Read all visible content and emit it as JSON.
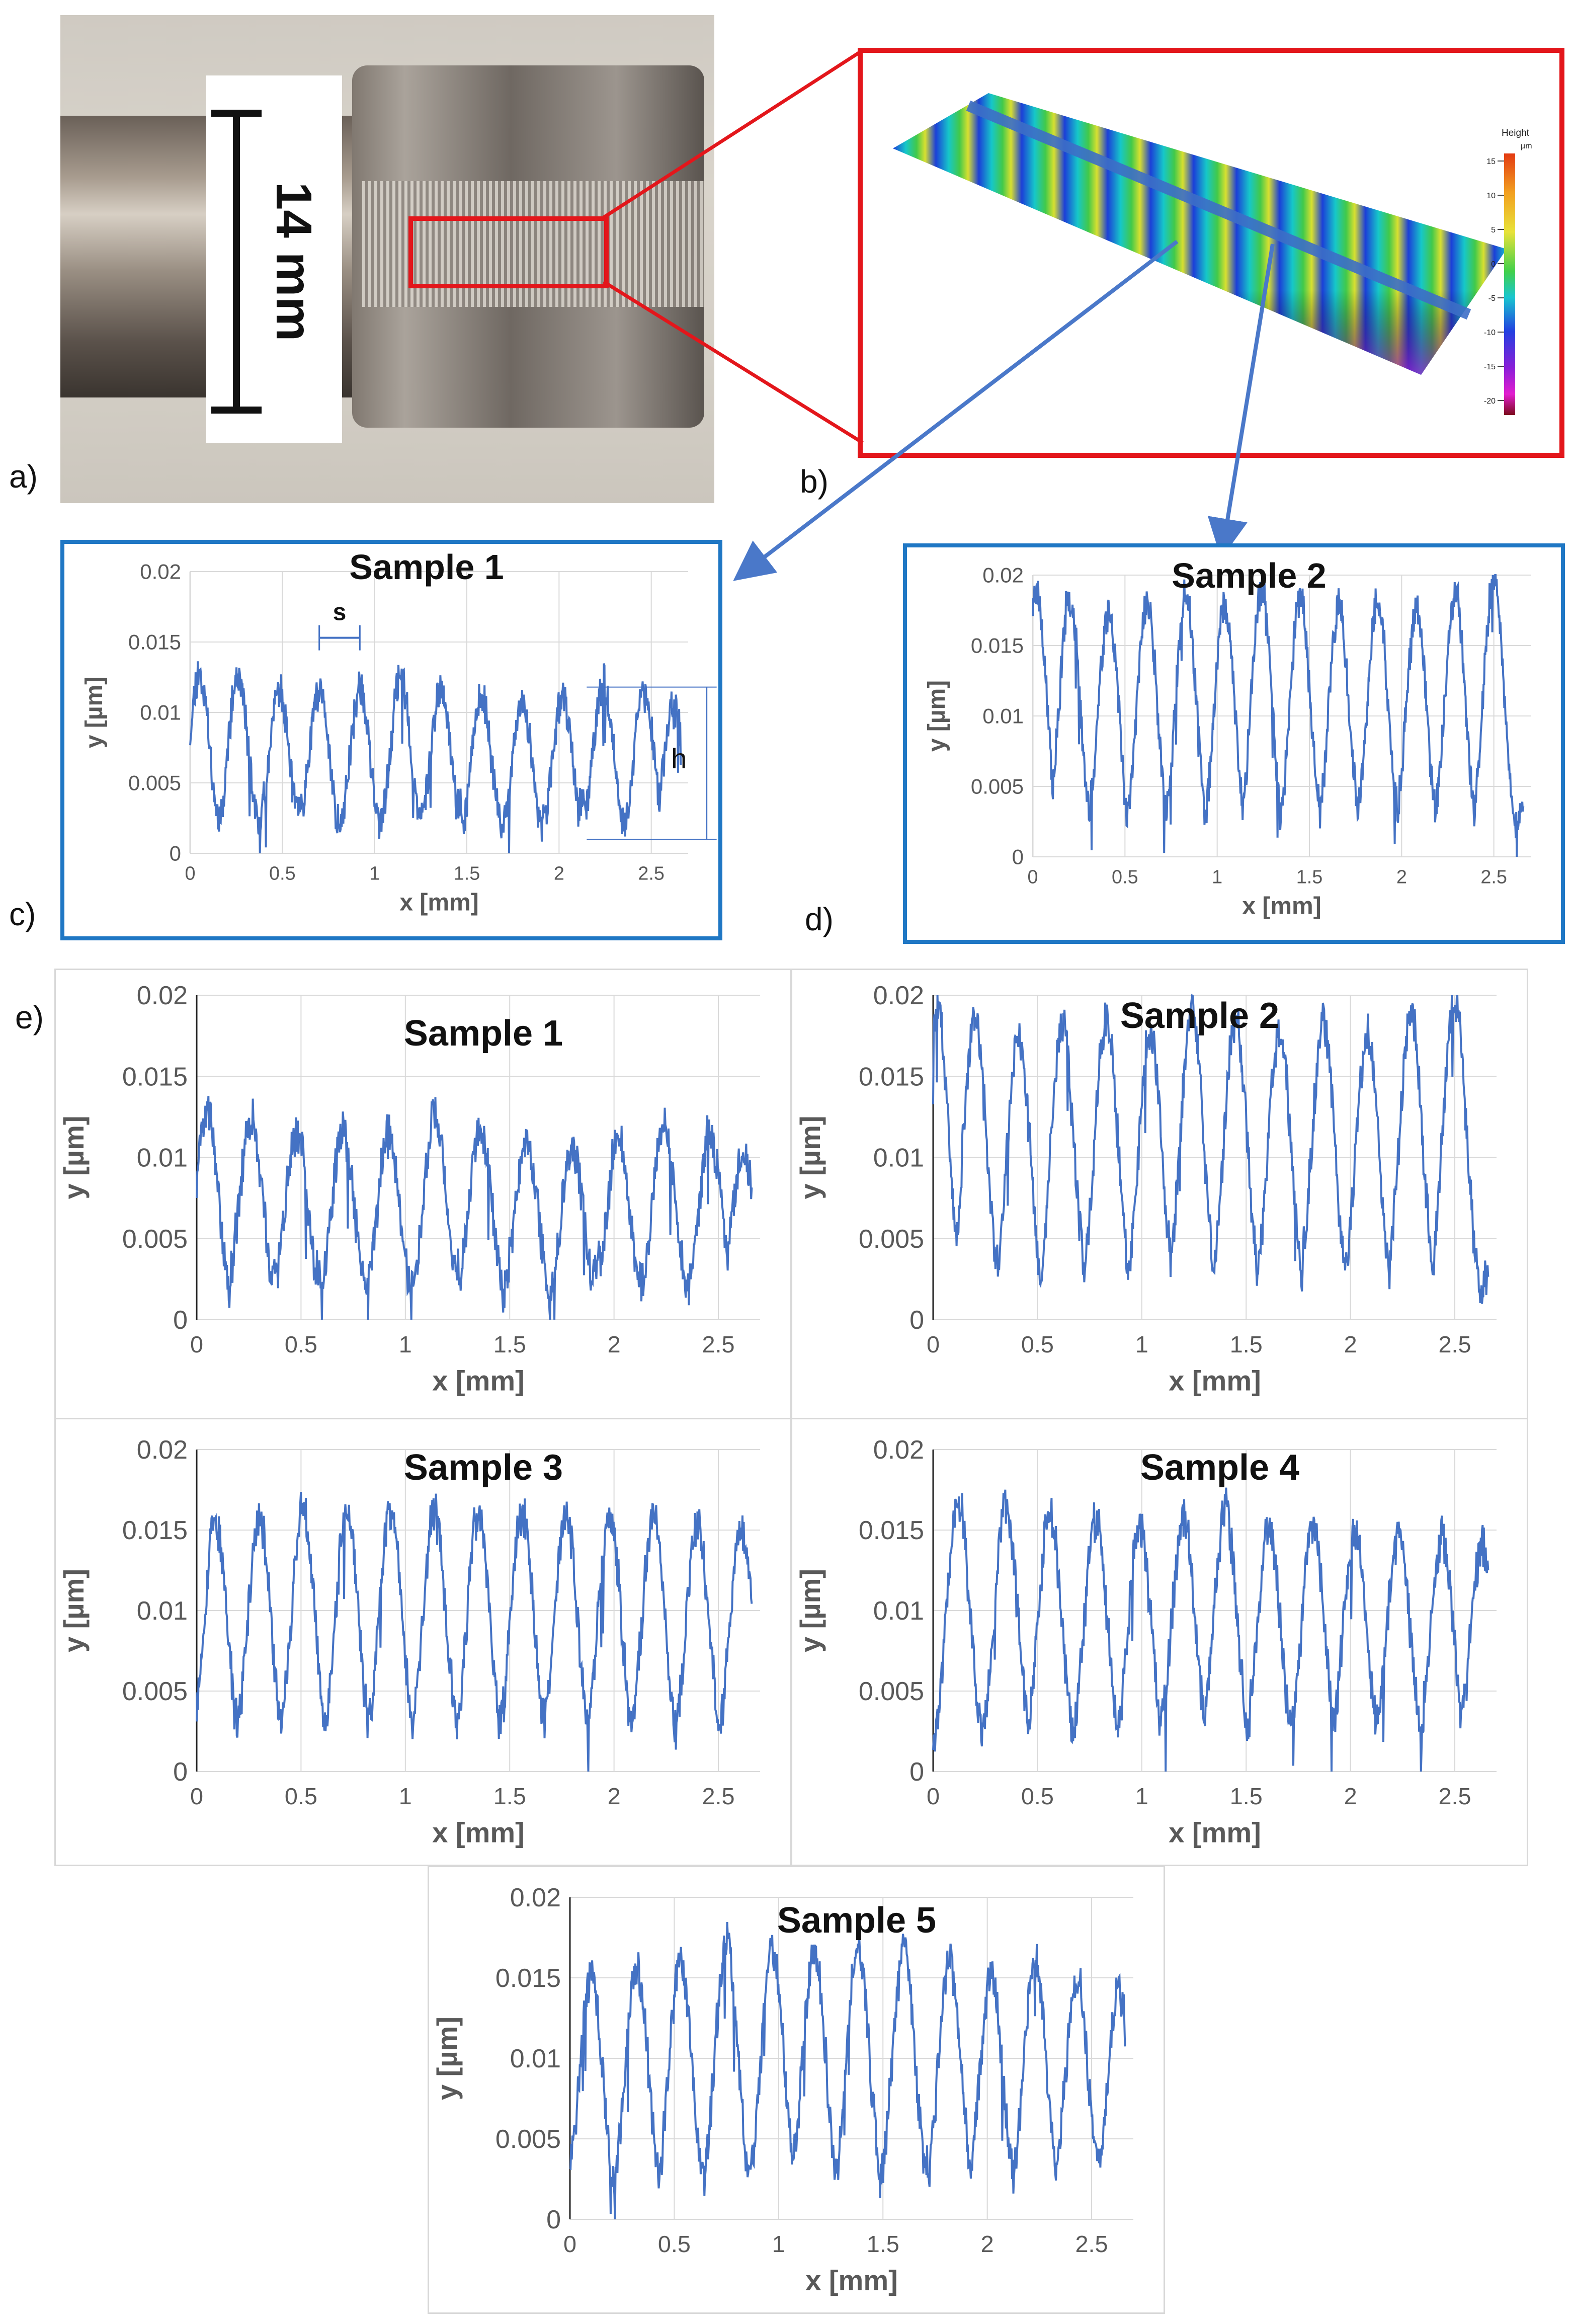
{
  "labels": {
    "a": "a)",
    "b": "b)",
    "c": "c)",
    "d": "d)",
    "e": "e)"
  },
  "photo": {
    "scale_label": "14 mm"
  },
  "surface": {
    "legend_title": "Height",
    "legend_unit": "µm",
    "legend_ticks": [
      "15",
      "10",
      "5",
      "0",
      "-5",
      "-10",
      "-15",
      "-20"
    ]
  },
  "annotations": {
    "spacing": "s",
    "height": "h"
  },
  "colors": {
    "line": "#4472c4",
    "box_red": "#e3161b",
    "box_blue": "#1f77c4",
    "grid": "#d9d9d9"
  },
  "chart_data": [
    {
      "id": "c",
      "type": "line",
      "title": "Sample 1",
      "xlabel": "x [mm]",
      "ylabel": "y [µm]",
      "xlim": [
        0,
        2.7
      ],
      "ylim": [
        0,
        0.02
      ],
      "xticks": [
        "0",
        "0.5",
        "1",
        "1.5",
        "2",
        "2.5"
      ],
      "yticks": [
        "0",
        "0.005",
        "0.01",
        "0.015",
        "0.02"
      ],
      "peaks": [
        0.05,
        0.26,
        0.48,
        0.7,
        0.92,
        1.14,
        1.36,
        1.58,
        1.8,
        2.02,
        2.24,
        2.46,
        2.62
      ],
      "peak_heights": [
        0.0128,
        0.0125,
        0.0115,
        0.0116,
        0.0115,
        0.0125,
        0.0117,
        0.011,
        0.0105,
        0.011,
        0.012,
        0.0114,
        0.0102
      ]
    },
    {
      "id": "d",
      "type": "line",
      "title": "Sample 2",
      "xlabel": "x [mm]",
      "ylabel": "y [µm]",
      "xlim": [
        0,
        2.7
      ],
      "ylim": [
        0,
        0.02
      ],
      "xticks": [
        "0",
        "0.5",
        "1",
        "1.5",
        "2",
        "2.5"
      ],
      "yticks": [
        "0",
        "0.005",
        "0.01",
        "0.015",
        "0.02"
      ],
      "peaks": [
        0.02,
        0.2,
        0.41,
        0.62,
        0.83,
        1.04,
        1.24,
        1.45,
        1.66,
        1.87,
        2.08,
        2.29,
        2.5
      ],
      "peak_heights": [
        0.019,
        0.0185,
        0.0175,
        0.018,
        0.0185,
        0.0178,
        0.019,
        0.0185,
        0.0178,
        0.0183,
        0.0175,
        0.0188,
        0.02
      ]
    },
    {
      "id": "e1",
      "type": "line",
      "title": "Sample 1",
      "xlabel": "x [mm]",
      "ylabel": "y [µm]",
      "xlim": [
        0,
        2.7
      ],
      "ylim": [
        0,
        0.02
      ],
      "xticks": [
        "0",
        "0.5",
        "1",
        "1.5",
        "2",
        "2.5"
      ],
      "yticks": [
        "0",
        "0.005",
        "0.01",
        "0.015",
        "0.02"
      ],
      "peaks": [
        0.05,
        0.26,
        0.48,
        0.7,
        0.92,
        1.14,
        1.36,
        1.58,
        1.8,
        2.02,
        2.24,
        2.46,
        2.62
      ],
      "peak_heights": [
        0.0128,
        0.0125,
        0.0115,
        0.0116,
        0.0115,
        0.0125,
        0.0117,
        0.011,
        0.0105,
        0.011,
        0.012,
        0.0114,
        0.0102
      ]
    },
    {
      "id": "e2",
      "type": "line",
      "title": "Sample 2",
      "xlabel": "x [mm]",
      "ylabel": "y [µm]",
      "xlim": [
        0,
        2.7
      ],
      "ylim": [
        0,
        0.02
      ],
      "xticks": [
        "0",
        "0.5",
        "1",
        "1.5",
        "2",
        "2.5"
      ],
      "yticks": [
        "0",
        "0.005",
        "0.01",
        "0.015",
        "0.02"
      ],
      "peaks": [
        0.02,
        0.2,
        0.41,
        0.62,
        0.83,
        1.04,
        1.24,
        1.45,
        1.66,
        1.87,
        2.08,
        2.29,
        2.5
      ],
      "peak_heights": [
        0.019,
        0.0185,
        0.0175,
        0.018,
        0.0185,
        0.0178,
        0.019,
        0.0185,
        0.0178,
        0.0183,
        0.0175,
        0.0188,
        0.02
      ]
    },
    {
      "id": "e3",
      "type": "line",
      "title": "Sample 3",
      "xlabel": "x [mm]",
      "ylabel": "y [µm]",
      "xlim": [
        0,
        2.7
      ],
      "ylim": [
        0,
        0.02
      ],
      "xticks": [
        "0",
        "0.5",
        "1",
        "1.5",
        "2",
        "2.5"
      ],
      "yticks": [
        "0",
        "0.005",
        "0.01",
        "0.015",
        "0.02"
      ],
      "peaks": [
        0.09,
        0.3,
        0.51,
        0.72,
        0.93,
        1.14,
        1.35,
        1.56,
        1.77,
        1.98,
        2.19,
        2.4,
        2.61
      ],
      "peak_heights": [
        0.0155,
        0.0158,
        0.0166,
        0.0162,
        0.0163,
        0.016,
        0.016,
        0.0162,
        0.0158,
        0.016,
        0.016,
        0.0155,
        0.0152
      ]
    },
    {
      "id": "e4",
      "type": "line",
      "title": "Sample 4",
      "xlabel": "x [mm]",
      "ylabel": "y [µm]",
      "xlim": [
        0,
        2.7
      ],
      "ylim": [
        0,
        0.02
      ],
      "xticks": [
        "0",
        "0.5",
        "1",
        "1.5",
        "2",
        "2.5"
      ],
      "yticks": [
        "0",
        "0.005",
        "0.01",
        "0.015",
        "0.02"
      ],
      "peaks": [
        0.12,
        0.35,
        0.56,
        0.78,
        0.99,
        1.2,
        1.4,
        1.61,
        1.82,
        2.02,
        2.23,
        2.44,
        2.63
      ],
      "peak_heights": [
        0.0168,
        0.0165,
        0.016,
        0.0155,
        0.0153,
        0.0158,
        0.0162,
        0.015,
        0.0152,
        0.015,
        0.0148,
        0.0145,
        0.014
      ]
    },
    {
      "id": "e5",
      "type": "line",
      "title": "Sample 5",
      "xlabel": "x [mm]",
      "ylabel": "y [µm]",
      "xlim": [
        0,
        2.7
      ],
      "ylim": [
        0,
        0.02
      ],
      "xticks": [
        "0",
        "0.5",
        "1",
        "1.5",
        "2",
        "2.5"
      ],
      "yticks": [
        "0",
        "0.005",
        "0.01",
        "0.015",
        "0.02"
      ],
      "peaks": [
        0.1,
        0.32,
        0.53,
        0.75,
        0.97,
        1.17,
        1.38,
        1.6,
        1.82,
        2.02,
        2.23,
        2.43,
        2.63
      ],
      "peak_heights": [
        0.0152,
        0.0155,
        0.016,
        0.0172,
        0.0165,
        0.0168,
        0.0172,
        0.0165,
        0.016,
        0.015,
        0.016,
        0.0148,
        0.014
      ]
    }
  ]
}
